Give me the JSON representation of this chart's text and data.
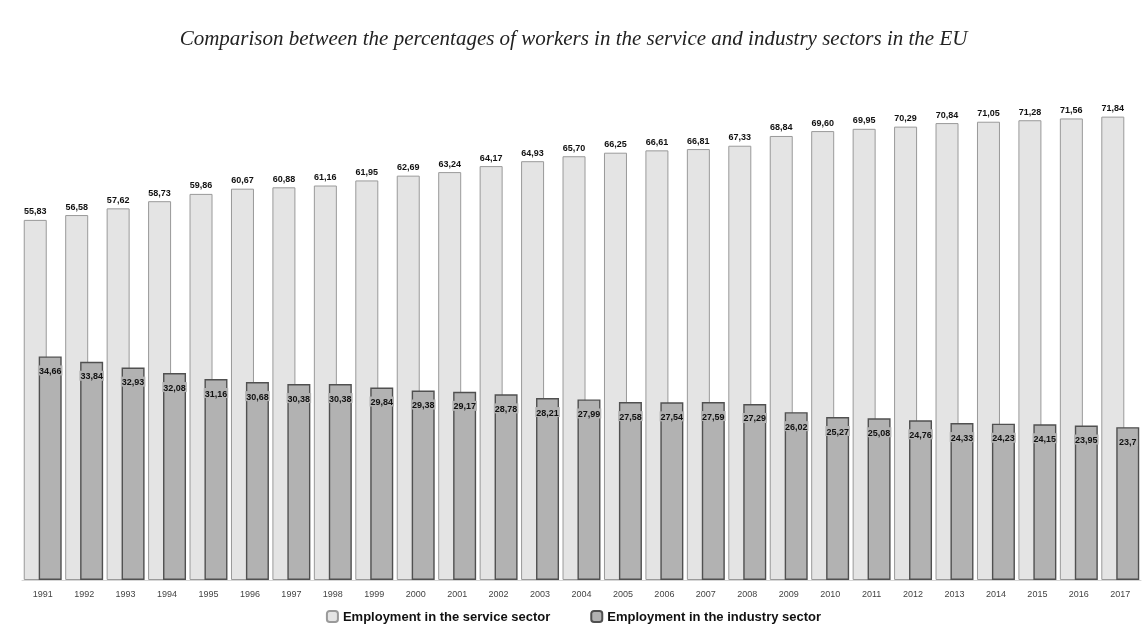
{
  "chart_data": {
    "type": "bar",
    "title": "Comparison between the percentages of workers in the service and industry sectors in the EU",
    "categories": [
      "1991",
      "1992",
      "1993",
      "1994",
      "1995",
      "1996",
      "1997",
      "1998",
      "1999",
      "2000",
      "2001",
      "2002",
      "2003",
      "2004",
      "2005",
      "2006",
      "2007",
      "2008",
      "2009",
      "2010",
      "2011",
      "2012",
      "2013",
      "2014",
      "2015",
      "2016",
      "2017"
    ],
    "series": [
      {
        "name": "Employment in the service sector",
        "color": "#e4e4e4",
        "values": [
          55.83,
          56.58,
          57.62,
          58.73,
          59.86,
          60.67,
          60.88,
          61.16,
          61.95,
          62.69,
          63.24,
          64.17,
          64.93,
          65.7,
          66.25,
          66.61,
          66.81,
          67.33,
          68.84,
          69.6,
          69.95,
          70.29,
          70.84,
          71.05,
          71.28,
          71.56,
          71.84
        ],
        "value_labels": [
          "55,83",
          "56,58",
          "57,62",
          "58,73",
          "59,86",
          "60,67",
          "60,88",
          "61,16",
          "61,95",
          "62,69",
          "63,24",
          "64,17",
          "64,93",
          "65,70",
          "66,25",
          "66,61",
          "66,81",
          "67,33",
          "68,84",
          "69,60",
          "69,95",
          "70,29",
          "70,84",
          "71,05",
          "71,28",
          "71,56",
          "71,84"
        ]
      },
      {
        "name": "Employment in the industry sector",
        "color": "#b2b2b2",
        "values": [
          34.66,
          33.84,
          32.93,
          32.08,
          31.16,
          30.68,
          30.38,
          30.38,
          29.84,
          29.38,
          29.17,
          28.78,
          28.21,
          27.99,
          27.58,
          27.54,
          27.59,
          27.29,
          26.02,
          25.27,
          25.08,
          24.76,
          24.33,
          24.23,
          24.15,
          23.95,
          23.7
        ],
        "value_labels": [
          "34,66",
          "33,84",
          "32,93",
          "32,08",
          "31,16",
          "30,68",
          "30,38",
          "30,38",
          "29,84",
          "29,38",
          "29,17",
          "28,78",
          "28,21",
          "27,99",
          "27,58",
          "27,54",
          "27,59",
          "27,29",
          "26,02",
          "25,27",
          "25,08",
          "24,76",
          "24,33",
          "24,23",
          "24,15",
          "23,95",
          "23,7"
        ]
      }
    ],
    "grid": false,
    "legend": "bottom"
  }
}
